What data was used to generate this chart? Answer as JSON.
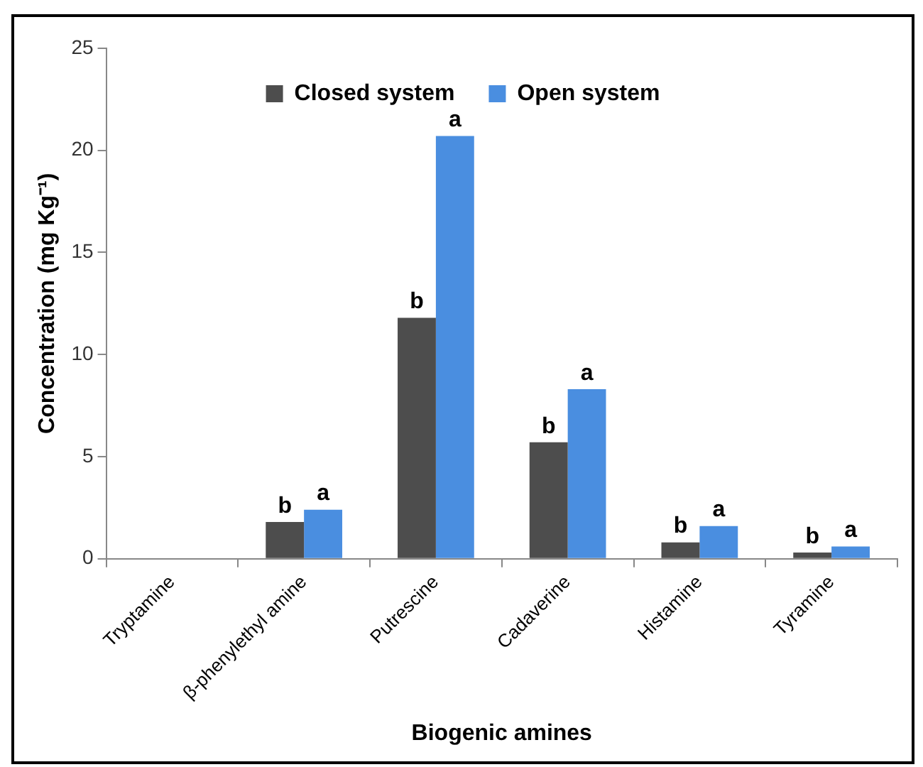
{
  "chart_data": {
    "type": "bar",
    "xlabel": "Biogenic amines",
    "ylabel": "Concentration (mg Kg⁻¹)",
    "categories": [
      "Tryptamine",
      "β-phenylethyl amine",
      "Putrescine",
      "Cadaverine",
      "Histamine",
      "Tyramine"
    ],
    "series": [
      {
        "name": "Closed system",
        "color": "#4d4d4d",
        "values": [
          0,
          1.8,
          11.8,
          5.7,
          0.8,
          0.3
        ]
      },
      {
        "name": "Open system",
        "color": "#4a8ee0",
        "values": [
          0,
          2.4,
          20.7,
          8.3,
          1.6,
          0.6
        ]
      }
    ],
    "ylim": [
      0,
      25
    ],
    "yticks": [
      0,
      5,
      10,
      15,
      20,
      25
    ],
    "grid": false,
    "legend": "top",
    "annotations": [
      {
        "text": "b",
        "x": "β-phenylethyl amine",
        "y": 1.8
      },
      {
        "text": "a",
        "x": "β-phenylethyl amine",
        "y": 2.4
      },
      {
        "text": "b",
        "x": "Putrescine",
        "y": 11.8
      },
      {
        "text": "a",
        "x": "Putrescine",
        "y": 20.7
      },
      {
        "text": "b",
        "x": "Cadaverine",
        "y": 5.7
      },
      {
        "text": "a",
        "x": "Cadaverine",
        "y": 8.3
      },
      {
        "text": "b",
        "x": "Histamine",
        "y": 0.8
      },
      {
        "text": "a",
        "x": "Histamine",
        "y": 1.6
      },
      {
        "text": "b",
        "x": "Tyramine",
        "y": 0.3
      },
      {
        "text": "a",
        "x": "Tyramine",
        "y": 0.6
      }
    ]
  }
}
